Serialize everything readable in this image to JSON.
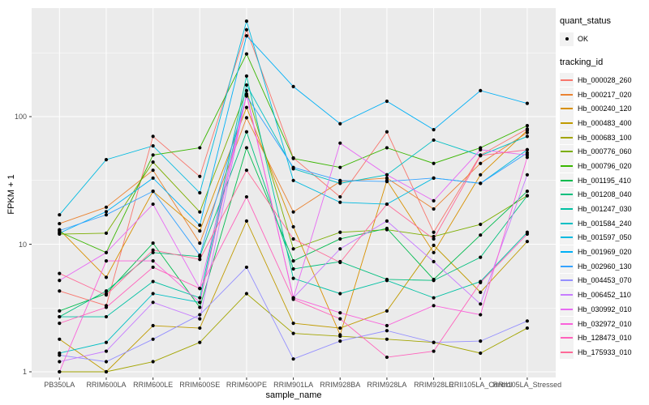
{
  "chart": {
    "xlabel": "sample_name",
    "ylabel": "FPKM + 1",
    "panel_bg": "#EBEBEB",
    "grid_color": "#FFFFFF",
    "tick_color": "#333333",
    "tick_label_color": "#4D4D4D",
    "point_color": "#000000",
    "y_tick_labels": [
      "1",
      "10",
      "100"
    ]
  },
  "legend": {
    "quant_status": {
      "title": "quant_status",
      "items": [
        {
          "label": "OK",
          "marker": "point-icon",
          "color": "#000000"
        }
      ]
    },
    "tracking_id": {
      "title": "tracking_id"
    }
  },
  "chart_data": {
    "type": "line",
    "title": "",
    "xlabel": "sample_name",
    "ylabel": "FPKM + 1",
    "yscale": "log10",
    "ylim": [
      0.9,
      700
    ],
    "y_major_ticks": [
      1,
      10,
      100
    ],
    "y_minor_gridlines": [
      3.162,
      31.62,
      316.2
    ],
    "grid": true,
    "legend_position": "right",
    "categories": [
      "PB350LA",
      "RRIM600LA",
      "RRIM600LE",
      "RRIM600SE",
      "RRIM600PE",
      "RRIM901LA",
      "RRIM928BA",
      "RRIM928LA",
      "RRIM928LE",
      "RRII105LA_Control",
      "RRII105LA_Stressed"
    ],
    "series": [
      {
        "name": "Hb_000028_260",
        "color": "#F8766D",
        "values": [
          4.3,
          3.3,
          70,
          34,
          480,
          47.5,
          23.5,
          76,
          12.4,
          50,
          80
        ]
      },
      {
        "name": "Hb_000217_020",
        "color": "#EA8331",
        "values": [
          14.5,
          19.5,
          38,
          10.2,
          98,
          17.9,
          31,
          33,
          18.9,
          43,
          75
        ]
      },
      {
        "name": "Hb_000240_120",
        "color": "#D89000",
        "values": [
          13,
          5.5,
          26,
          12.7,
          118,
          13.7,
          1.95,
          31.6,
          8.6,
          35,
          78
        ]
      },
      {
        "name": "Hb_000483_400",
        "color": "#C09B00",
        "values": [
          1.8,
          1.0,
          2.3,
          2.2,
          15.2,
          2.4,
          2.2,
          3.0,
          9.8,
          4.2,
          10.5
        ]
      },
      {
        "name": "Hb_000683_100",
        "color": "#A3A500",
        "values": [
          1.0,
          1.0,
          1.2,
          1.7,
          4.1,
          2.0,
          1.9,
          1.8,
          1.7,
          1.4,
          2.2
        ]
      },
      {
        "name": "Hb_000776_060",
        "color": "#7CAE00",
        "values": [
          12,
          12.2,
          44,
          17.9,
          160,
          9.2,
          12.4,
          13,
          11.5,
          14.3,
          24
        ]
      },
      {
        "name": "Hb_000796_020",
        "color": "#39B600",
        "values": [
          12.5,
          8.6,
          50,
          57,
          310,
          47,
          40,
          57,
          43,
          57,
          85
        ]
      },
      {
        "name": "Hb_001195_410",
        "color": "#00BB4E",
        "values": [
          3.0,
          4.1,
          10.2,
          3.2,
          57,
          7.4,
          11.0,
          13.3,
          5.3,
          11.8,
          26
        ]
      },
      {
        "name": "Hb_001208_040",
        "color": "#00BF7D",
        "values": [
          2.7,
          4.3,
          8.6,
          8.0,
          76,
          6.4,
          7.3,
          5.3,
          5.2,
          7.9,
          24
        ]
      },
      {
        "name": "Hb_001247_030",
        "color": "#00C1A3",
        "values": [
          2.7,
          2.7,
          5.1,
          3.8,
          208,
          5.4,
          4.1,
          5.2,
          3.8,
          5.1,
          12.4
        ]
      },
      {
        "name": "Hb_001584_240",
        "color": "#00BFC4",
        "values": [
          1.4,
          1.7,
          4.1,
          3.5,
          177,
          39,
          30,
          35,
          65.5,
          49.5,
          70
        ]
      },
      {
        "name": "Hb_001597_050",
        "color": "#00BAE0",
        "values": [
          17,
          46,
          59,
          25.3,
          560,
          31.6,
          21.3,
          20.6,
          33,
          30,
          55
        ]
      },
      {
        "name": "Hb_001969_020",
        "color": "#00B0F6",
        "values": [
          12.2,
          18,
          33,
          14.1,
          430,
          172,
          88,
          132,
          79,
          160,
          127
        ]
      },
      {
        "name": "Hb_002960_130",
        "color": "#35A2FF",
        "values": [
          12.8,
          17,
          26,
          8.2,
          145,
          40,
          31.6,
          31,
          33,
          30,
          52
        ]
      },
      {
        "name": "Hb_004453_070",
        "color": "#9590FF",
        "values": [
          1.35,
          1.2,
          1.8,
          2.8,
          6.6,
          1.26,
          1.74,
          2.1,
          1.7,
          1.74,
          2.5
        ]
      },
      {
        "name": "Hb_006452_110",
        "color": "#C77CFF",
        "values": [
          1.2,
          1.45,
          3.5,
          2.6,
          150,
          3.8,
          9.2,
          15.2,
          7.3,
          3.4,
          35
        ]
      },
      {
        "name": "Hb_030992_010",
        "color": "#E76BF3",
        "values": [
          5.2,
          8.6,
          20.6,
          4.5,
          148,
          3.8,
          62,
          35,
          21.9,
          55,
          50
        ]
      },
      {
        "name": "Hb_032972_010",
        "color": "#FA62DB",
        "values": [
          1.0,
          7.4,
          7.4,
          3.5,
          150,
          3.8,
          2.9,
          2.3,
          3.3,
          2.8,
          48
        ]
      },
      {
        "name": "Hb_128473_010",
        "color": "#FF62BC",
        "values": [
          2.4,
          3.2,
          6.6,
          4.5,
          23.5,
          3.7,
          2.6,
          1.3,
          1.45,
          5.0,
          12
        ]
      },
      {
        "name": "Hb_175933_010",
        "color": "#FF6A98",
        "values": [
          5.9,
          4.0,
          9.0,
          7.6,
          38,
          11.0,
          7.2,
          20.6,
          11.0,
          49.5,
          55
        ]
      }
    ]
  }
}
